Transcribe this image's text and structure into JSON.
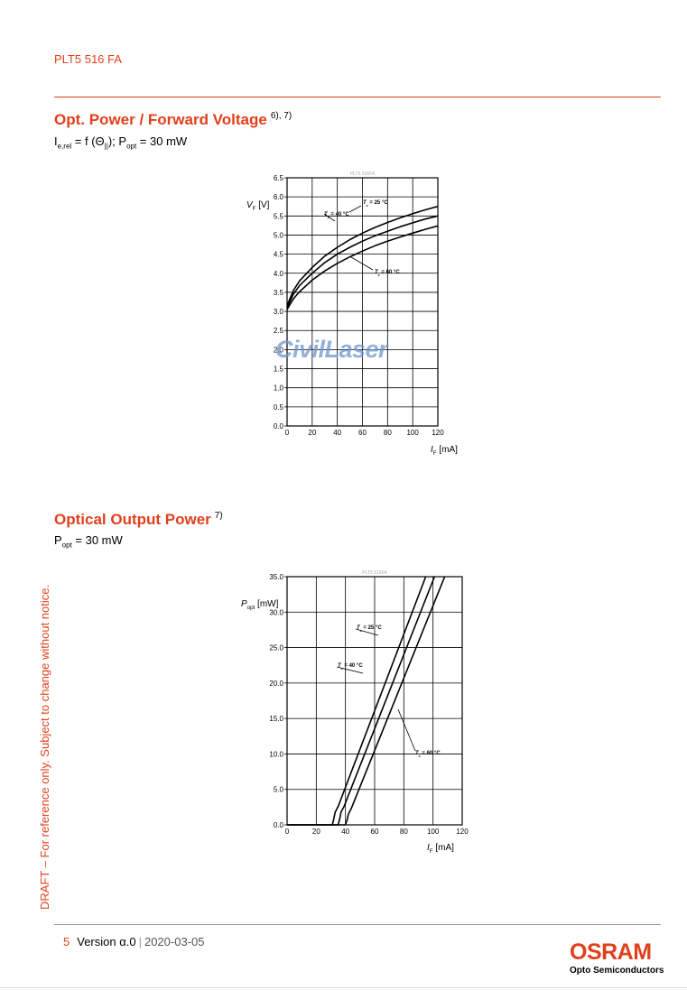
{
  "header": {
    "doc_code": "PLT5 516 FA"
  },
  "section1": {
    "title": "Opt. Power / Forward Voltage",
    "footnote": "6), 7)",
    "subtitle_parts": [
      "I",
      "e,rel",
      " = f (Θ",
      "||",
      "); P",
      "opt",
      " = 30 mW"
    ]
  },
  "section2": {
    "title": "Optical Output Power",
    "footnote": "7)",
    "subtitle_parts": [
      "P",
      "opt",
      " = 30 mW"
    ]
  },
  "watermark": "CivilLaser",
  "side_note": "DRAFT – For reference only. Subject to change without notice.",
  "footer": {
    "page": "5",
    "version": "Version α.0",
    "separator": "|",
    "date": "2020-03-05"
  },
  "logo": {
    "name": "OSRAM",
    "tagline": "Opto Semiconductors"
  },
  "colors": {
    "accent": "#e0401c"
  },
  "chart_data": [
    {
      "type": "line",
      "title": "PLT5 516FA",
      "ylabel_sym": "V",
      "ylabel_sub": "F",
      "ylabel_unit": "[V]",
      "xlabel_sym": "I",
      "xlabel_sub": "F",
      "xlabel_unit": "[mA]",
      "xlim": [
        0,
        120
      ],
      "ylim": [
        0,
        6.5
      ],
      "xticks": [
        0,
        20,
        40,
        60,
        80,
        100,
        120
      ],
      "yticks": [
        0.0,
        0.5,
        1.0,
        1.5,
        2.0,
        2.5,
        3.0,
        3.5,
        4.0,
        4.5,
        5.0,
        5.5,
        6.0,
        6.5
      ],
      "grid": true,
      "series": [
        {
          "name": "Tc = 25 °C",
          "label_sym": "T",
          "label_sub": "c",
          "label_rest": " = 25 °C",
          "x": [
            0,
            5,
            10,
            20,
            30,
            40,
            50,
            60,
            70,
            80,
            90,
            100,
            110,
            120
          ],
          "y": [
            3.15,
            3.55,
            3.8,
            4.15,
            4.45,
            4.68,
            4.88,
            5.05,
            5.2,
            5.33,
            5.45,
            5.56,
            5.66,
            5.75
          ]
        },
        {
          "name": "Tc = 40 °C",
          "label_sym": "T",
          "label_sub": "c",
          "label_rest": " = 40 °C",
          "x": [
            0,
            5,
            10,
            20,
            30,
            40,
            50,
            60,
            70,
            80,
            90,
            100,
            110,
            120
          ],
          "y": [
            3.1,
            3.45,
            3.68,
            4.0,
            4.28,
            4.5,
            4.68,
            4.84,
            4.98,
            5.1,
            5.22,
            5.32,
            5.42,
            5.5
          ]
        },
        {
          "name": "Tc = 60 °C",
          "label_sym": "T",
          "label_sub": "c",
          "label_rest": " = 60 °C",
          "x": [
            0,
            5,
            10,
            20,
            30,
            40,
            50,
            60,
            70,
            80,
            90,
            100,
            110,
            120
          ],
          "y": [
            3.05,
            3.33,
            3.52,
            3.82,
            4.06,
            4.26,
            4.43,
            4.58,
            4.72,
            4.84,
            4.95,
            5.05,
            5.15,
            5.24
          ]
        }
      ]
    },
    {
      "type": "line",
      "title": "PLT5 516FA",
      "ylabel_sym": "P",
      "ylabel_sub": "opt",
      "ylabel_unit": "[mW]",
      "xlabel_sym": "I",
      "xlabel_sub": "F",
      "xlabel_unit": "[mA]",
      "xlim": [
        0,
        120
      ],
      "ylim": [
        0,
        35
      ],
      "xticks": [
        0,
        20,
        40,
        60,
        80,
        100,
        120
      ],
      "yticks": [
        0.0,
        5.0,
        10.0,
        15.0,
        20.0,
        25.0,
        30.0,
        35.0
      ],
      "grid": true,
      "series": [
        {
          "name": "Tc = 25 °C",
          "label_sym": "T",
          "label_sub": "c",
          "label_rest": " = 25 °C",
          "x": [
            0,
            31,
            32,
            33,
            35,
            95
          ],
          "y": [
            0,
            0,
            0.8,
            1.8,
            2.6,
            35
          ]
        },
        {
          "name": "Tc = 40 °C",
          "label_sym": "T",
          "label_sub": "c",
          "label_rest": " = 40 °C",
          "x": [
            0,
            35,
            36,
            37,
            39,
            101
          ],
          "y": [
            0,
            0,
            0.8,
            1.8,
            2.6,
            35
          ]
        },
        {
          "name": "Tc = 60 °C",
          "label_sym": "T",
          "label_sub": "c",
          "label_rest": " = 60 °C",
          "x": [
            0,
            40,
            41,
            42,
            44,
            108
          ],
          "y": [
            0,
            0,
            0.6,
            1.5,
            2.3,
            35
          ]
        }
      ]
    }
  ]
}
